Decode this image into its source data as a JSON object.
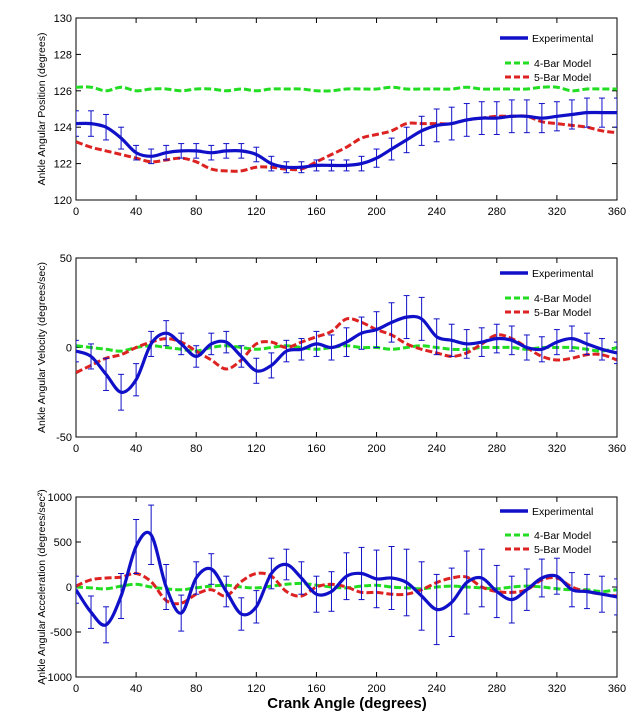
{
  "figure": {
    "xlabel": "Crank Angle (degrees)"
  },
  "colors": {
    "experimental": "#1010c8",
    "four_bar": "#22dd22",
    "five_bar": "#dd2222"
  },
  "chart_data": [
    {
      "type": "line",
      "ylabel": "Ankle Angular Position (degrees)",
      "xlim": [
        0,
        360
      ],
      "ylim": [
        120,
        130
      ],
      "xticks": [
        0,
        40,
        80,
        120,
        160,
        200,
        240,
        280,
        320,
        360
      ],
      "yticks": [
        120,
        122,
        124,
        126,
        128,
        130
      ],
      "grid": false,
      "legend": "top-right",
      "series": [
        {
          "name": "Experimental",
          "style": "solid-errorbar",
          "x": [
            0,
            10,
            20,
            30,
            40,
            50,
            60,
            70,
            80,
            90,
            100,
            110,
            120,
            130,
            140,
            150,
            160,
            170,
            180,
            190,
            200,
            210,
            220,
            230,
            240,
            250,
            260,
            270,
            280,
            290,
            300,
            310,
            320,
            330,
            340,
            350,
            360
          ],
          "y": [
            124.2,
            124.2,
            124.0,
            123.4,
            122.6,
            122.4,
            122.6,
            122.7,
            122.7,
            122.6,
            122.7,
            122.7,
            122.5,
            122.0,
            121.8,
            121.8,
            121.9,
            121.9,
            121.9,
            122.0,
            122.3,
            122.8,
            123.3,
            123.8,
            124.1,
            124.2,
            124.4,
            124.5,
            124.5,
            124.6,
            124.6,
            124.5,
            124.6,
            124.7,
            124.8,
            124.8,
            124.8
          ],
          "error": [
            0.7,
            0.7,
            0.7,
            0.6,
            0.4,
            0.4,
            0.4,
            0.4,
            0.4,
            0.4,
            0.4,
            0.4,
            0.4,
            0.4,
            0.3,
            0.3,
            0.3,
            0.3,
            0.3,
            0.4,
            0.5,
            0.6,
            0.7,
            0.8,
            0.9,
            0.9,
            0.9,
            0.9,
            0.9,
            0.9,
            0.9,
            0.8,
            0.8,
            0.8,
            0.8,
            0.8,
            0.8
          ]
        },
        {
          "name": "4-Bar Model",
          "style": "dashed",
          "x": [
            0,
            10,
            20,
            30,
            40,
            50,
            60,
            70,
            80,
            90,
            100,
            110,
            120,
            130,
            140,
            150,
            160,
            170,
            180,
            190,
            200,
            210,
            220,
            230,
            240,
            250,
            260,
            270,
            280,
            290,
            300,
            310,
            320,
            330,
            340,
            350,
            360
          ],
          "y": [
            126.2,
            126.2,
            126.0,
            126.2,
            126.0,
            126.1,
            126.1,
            126.0,
            126.1,
            126.1,
            126.0,
            126.1,
            126.0,
            126.1,
            126.1,
            126.1,
            126.0,
            126.0,
            126.1,
            126.1,
            126.1,
            126.2,
            126.1,
            126.1,
            126.1,
            126.1,
            126.2,
            126.1,
            126.1,
            126.1,
            126.1,
            126.2,
            126.2,
            126.0,
            126.1,
            126.1,
            126.1
          ]
        },
        {
          "name": "5-Bar Model",
          "style": "dashed",
          "x": [
            0,
            10,
            20,
            30,
            40,
            50,
            60,
            70,
            80,
            90,
            100,
            110,
            120,
            130,
            140,
            150,
            160,
            170,
            180,
            190,
            200,
            210,
            220,
            230,
            240,
            250,
            260,
            270,
            280,
            290,
            300,
            310,
            320,
            330,
            340,
            350,
            360
          ],
          "y": [
            123.2,
            122.9,
            122.7,
            122.5,
            122.3,
            122.1,
            122.2,
            122.3,
            122.1,
            121.7,
            121.6,
            121.6,
            121.8,
            121.8,
            121.7,
            121.7,
            122.1,
            122.5,
            122.9,
            123.4,
            123.6,
            123.8,
            124.2,
            124.2,
            124.2,
            124.2,
            124.4,
            124.5,
            124.6,
            124.6,
            124.6,
            124.3,
            124.2,
            124.1,
            124.0,
            123.8,
            123.7
          ]
        }
      ]
    },
    {
      "type": "line",
      "ylabel": "Ankle Angular Velocity (degrees/sec)",
      "xlim": [
        0,
        360
      ],
      "ylim": [
        -50,
        50
      ],
      "xticks": [
        0,
        40,
        80,
        120,
        160,
        200,
        240,
        280,
        320,
        360
      ],
      "yticks": [
        -50,
        0,
        50
      ],
      "grid": false,
      "legend": "top-right",
      "series": [
        {
          "name": "Experimental",
          "style": "solid-errorbar",
          "x": [
            0,
            10,
            20,
            30,
            40,
            50,
            60,
            70,
            80,
            90,
            100,
            110,
            120,
            130,
            140,
            150,
            160,
            170,
            180,
            190,
            200,
            210,
            220,
            230,
            240,
            250,
            260,
            270,
            280,
            290,
            300,
            310,
            320,
            330,
            340,
            350,
            360
          ],
          "y": [
            -2,
            -5,
            -15,
            -25,
            -18,
            2,
            8,
            2,
            -5,
            2,
            3,
            -5,
            -13,
            -10,
            -2,
            -1,
            2,
            0,
            3,
            8,
            10,
            14,
            17,
            16,
            6,
            4,
            2,
            3,
            5,
            4,
            0,
            -1,
            3,
            5,
            2,
            -1,
            -3
          ],
          "error": [
            6,
            7,
            9,
            10,
            9,
            7,
            7,
            6,
            6,
            6,
            6,
            6,
            7,
            7,
            6,
            6,
            7,
            7,
            8,
            9,
            10,
            11,
            12,
            12,
            10,
            9,
            8,
            8,
            8,
            8,
            7,
            7,
            7,
            7,
            6,
            6,
            6
          ]
        },
        {
          "name": "4-Bar Model",
          "style": "dashed",
          "x": [
            0,
            10,
            20,
            30,
            40,
            50,
            60,
            70,
            80,
            90,
            100,
            110,
            120,
            130,
            140,
            150,
            160,
            170,
            180,
            190,
            200,
            210,
            220,
            230,
            240,
            250,
            260,
            270,
            280,
            290,
            300,
            310,
            320,
            330,
            340,
            350,
            360
          ],
          "y": [
            1,
            0,
            -1,
            -2,
            0,
            1,
            0,
            -1,
            -2,
            0,
            1,
            0,
            -1,
            0,
            1,
            0,
            -1,
            0,
            1,
            0,
            0,
            -1,
            0,
            1,
            0,
            -1,
            -1,
            0,
            0,
            0,
            -1,
            0,
            0,
            0,
            -1,
            -2,
            0
          ]
        },
        {
          "name": "5-Bar Model",
          "style": "dashed",
          "x": [
            0,
            10,
            20,
            30,
            40,
            50,
            60,
            70,
            80,
            90,
            100,
            110,
            120,
            130,
            140,
            150,
            160,
            170,
            180,
            190,
            200,
            210,
            220,
            230,
            240,
            250,
            260,
            270,
            280,
            290,
            300,
            310,
            320,
            330,
            340,
            350,
            360
          ],
          "y": [
            -14,
            -10,
            -6,
            -4,
            0,
            3,
            5,
            3,
            -2,
            -7,
            -12,
            -7,
            2,
            3,
            0,
            3,
            6,
            9,
            16,
            14,
            10,
            7,
            2,
            -1,
            -3,
            -5,
            -3,
            2,
            7,
            5,
            0,
            -5,
            -7,
            -6,
            -4,
            -4,
            -7
          ]
        }
      ]
    },
    {
      "type": "line",
      "ylabel": "Ankle Angular Acceleration (degrees/sec²)",
      "xlim": [
        0,
        360
      ],
      "ylim": [
        -1000,
        1000
      ],
      "xticks": [
        0,
        40,
        80,
        120,
        160,
        200,
        240,
        280,
        320,
        360
      ],
      "yticks": [
        -1000,
        -500,
        0,
        500,
        1000
      ],
      "grid": false,
      "legend": "top-right",
      "series": [
        {
          "name": "Experimental",
          "style": "solid-errorbar",
          "x": [
            0,
            10,
            20,
            30,
            40,
            50,
            60,
            70,
            80,
            90,
            100,
            110,
            120,
            130,
            140,
            150,
            160,
            170,
            180,
            190,
            200,
            210,
            220,
            230,
            240,
            250,
            260,
            270,
            280,
            290,
            300,
            310,
            320,
            330,
            340,
            350,
            360
          ],
          "y": [
            -30,
            -280,
            -420,
            -100,
            450,
            580,
            0,
            -290,
            100,
            200,
            -50,
            -300,
            -220,
            150,
            250,
            100,
            -80,
            -50,
            120,
            150,
            90,
            100,
            50,
            -100,
            -250,
            -170,
            50,
            100,
            -50,
            -140,
            -30,
            100,
            120,
            -30,
            -50,
            -80,
            -110
          ],
          "error": [
            150,
            180,
            200,
            250,
            300,
            330,
            250,
            200,
            180,
            170,
            170,
            180,
            180,
            170,
            170,
            180,
            200,
            220,
            260,
            290,
            320,
            350,
            370,
            380,
            390,
            380,
            350,
            320,
            290,
            260,
            230,
            210,
            200,
            190,
            190,
            200,
            200
          ]
        },
        {
          "name": "4-Bar Model",
          "style": "dashed",
          "x": [
            0,
            10,
            20,
            30,
            40,
            50,
            60,
            70,
            80,
            90,
            100,
            110,
            120,
            130,
            140,
            150,
            160,
            170,
            180,
            190,
            200,
            210,
            220,
            230,
            240,
            250,
            260,
            270,
            280,
            290,
            300,
            310,
            320,
            330,
            340,
            350,
            360
          ],
          "y": [
            0,
            -10,
            -20,
            10,
            30,
            0,
            -20,
            -30,
            -10,
            10,
            20,
            0,
            -10,
            10,
            30,
            40,
            20,
            0,
            -10,
            10,
            20,
            0,
            -10,
            -20,
            0,
            10,
            0,
            -10,
            -20,
            0,
            10,
            0,
            -20,
            -30,
            -30,
            -50,
            -30
          ]
        },
        {
          "name": "5-Bar Model",
          "style": "dashed",
          "x": [
            0,
            10,
            20,
            30,
            40,
            50,
            60,
            70,
            80,
            90,
            100,
            110,
            120,
            130,
            140,
            150,
            160,
            170,
            180,
            190,
            200,
            210,
            220,
            230,
            240,
            250,
            260,
            270,
            280,
            290,
            300,
            310,
            320,
            330,
            340,
            350,
            360
          ],
          "y": [
            10,
            80,
            100,
            110,
            150,
            60,
            -150,
            -180,
            -80,
            -30,
            -100,
            60,
            150,
            120,
            -50,
            -100,
            0,
            30,
            0,
            -60,
            -60,
            -80,
            -80,
            -30,
            50,
            100,
            110,
            0,
            -50,
            -60,
            -30,
            80,
            100,
            0,
            -50,
            -80,
            -100
          ]
        }
      ]
    }
  ]
}
